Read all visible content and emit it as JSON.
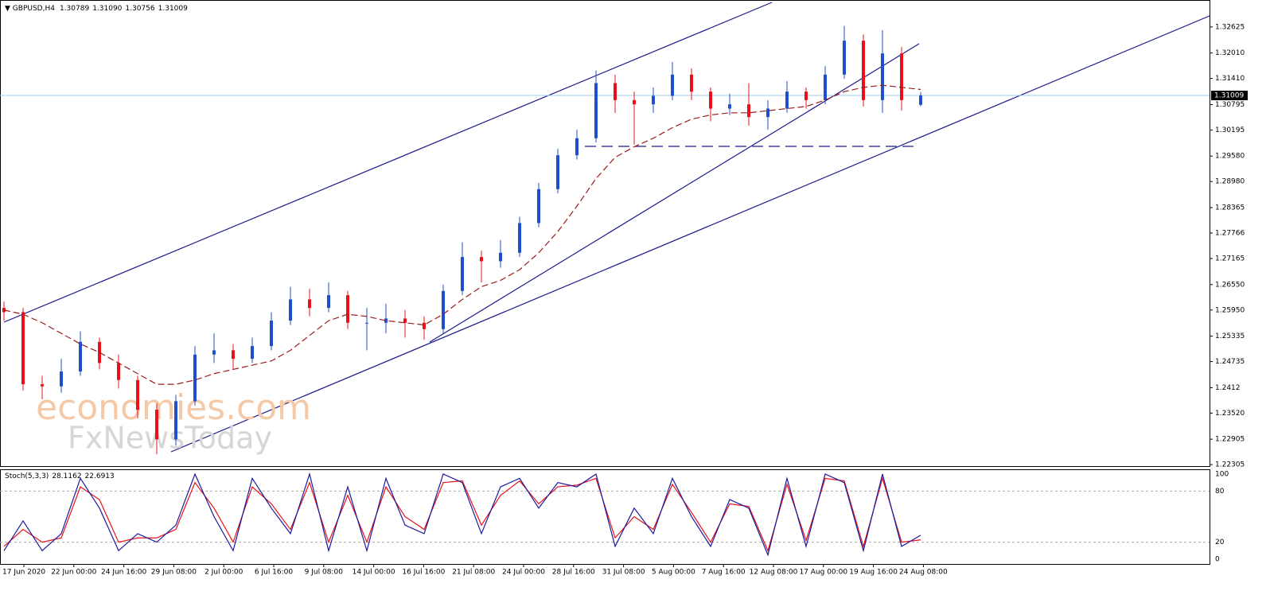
{
  "chart_data": {
    "type": "candlestick",
    "symbol": "GBPUSD,H4",
    "ohlc_header": [
      "1.30789",
      "1.31090",
      "1.30756",
      "1.31009"
    ],
    "current_price": 1.31009,
    "watermark": [
      "economies.com",
      "FxNewsToday"
    ],
    "up_color": "#1f4fd1",
    "down_color": "#e8111a",
    "ma_color": "#9b1c1c",
    "ylim": [
      1.2227,
      1.3326
    ],
    "yticks": [
      {
        "value": 1.22305,
        "label": "1.22305"
      },
      1.22905,
      {
        "value": 1.2352,
        "label": "1.23520"
      },
      1.2412,
      1.24735,
      1.25335,
      {
        "value": 1.2595,
        "label": "1.25950"
      },
      {
        "value": 1.2655,
        "label": "1.26550"
      },
      1.27165,
      1.27766,
      1.28365,
      {
        "value": 1.2898,
        "label": "1.28980"
      },
      {
        "value": 1.2958,
        "label": "1.29580"
      },
      {
        "value": 1.30195,
        "label": "1.30195"
      },
      1.30795,
      {
        "value": 1.3141,
        "label": "1.31410"
      },
      {
        "value": 1.3201,
        "label": "1.32010"
      },
      1.32625
    ],
    "time_labels": [
      "17 Jun 2020",
      "22 Jun 00:00",
      "24 Jun 16:00",
      "29 Jun 08:00",
      "2 Jul 00:00",
      "6 Jul 16:00",
      "9 Jul 08:00",
      "14 Jul 00:00",
      "16 Jul 16:00",
      "21 Jul 08:00",
      "24 Jul 00:00",
      "28 Jul 16:00",
      "31 Jul 08:00",
      "5 Aug 00:00",
      "7 Aug 16:00",
      "12 Aug 08:00",
      "17 Aug 00:00",
      "19 Aug 16:00",
      "24 Aug 08:00"
    ],
    "open": [
      1.26,
      1.259,
      1.242,
      1.2415,
      1.245,
      1.252,
      1.247,
      1.243,
      1.236,
      1.229,
      1.238,
      1.249,
      1.25,
      1.248,
      1.251,
      1.257,
      1.262,
      1.26,
      1.263,
      1.2565,
      1.2565,
      1.2575,
      1.2565,
      1.255,
      1.264,
      1.272,
      1.271,
      1.273,
      1.28,
      1.288,
      1.296,
      1.3,
      1.313,
      1.309,
      1.308,
      1.31,
      1.315,
      1.311,
      1.307,
      1.308,
      1.305,
      1.307,
      1.311,
      1.309,
      1.315,
      1.323,
      1.309,
      1.32,
      1.30789
    ],
    "high": [
      1.2615,
      1.26,
      1.244,
      1.248,
      1.2545,
      1.253,
      1.249,
      1.244,
      1.2375,
      1.2395,
      1.251,
      1.254,
      1.2515,
      1.253,
      1.259,
      1.265,
      1.2645,
      1.266,
      1.264,
      1.26,
      1.261,
      1.2595,
      1.258,
      1.2655,
      1.2755,
      1.2735,
      1.276,
      1.2815,
      1.2895,
      1.2975,
      1.302,
      1.316,
      1.315,
      1.311,
      1.312,
      1.318,
      1.3165,
      1.312,
      1.3105,
      1.313,
      1.309,
      1.3135,
      1.312,
      1.317,
      1.3265,
      1.3245,
      1.3255,
      1.3215,
      1.3109
    ],
    "low": [
      1.257,
      1.2405,
      1.2385,
      1.24,
      1.244,
      1.2455,
      1.241,
      1.234,
      1.2255,
      1.2275,
      1.237,
      1.247,
      1.2455,
      1.247,
      1.25,
      1.256,
      1.258,
      1.259,
      1.255,
      1.25,
      1.254,
      1.253,
      1.2525,
      1.254,
      1.263,
      1.266,
      1.2695,
      1.272,
      1.279,
      1.287,
      1.295,
      1.299,
      1.306,
      1.2985,
      1.306,
      1.309,
      1.309,
      1.304,
      1.3055,
      1.303,
      1.302,
      1.306,
      1.307,
      1.308,
      1.314,
      1.3075,
      1.306,
      1.3065,
      1.30756
    ],
    "close": [
      1.259,
      1.242,
      1.2415,
      1.245,
      1.252,
      1.247,
      1.243,
      1.236,
      1.229,
      1.238,
      1.249,
      1.25,
      1.248,
      1.251,
      1.257,
      1.262,
      1.26,
      1.263,
      1.2565,
      1.2565,
      1.2575,
      1.2565,
      1.255,
      1.264,
      1.272,
      1.271,
      1.273,
      1.28,
      1.288,
      1.296,
      1.3,
      1.313,
      1.309,
      1.308,
      1.31,
      1.315,
      1.311,
      1.307,
      1.308,
      1.305,
      1.307,
      1.311,
      1.309,
      1.315,
      1.323,
      1.309,
      1.32,
      1.309,
      1.31009
    ],
    "ma": [
      1.2595,
      1.2585,
      1.2565,
      1.254,
      1.2515,
      1.2495,
      1.247,
      1.2445,
      1.242,
      1.242,
      1.243,
      1.2445,
      1.2455,
      1.2465,
      1.2475,
      1.25,
      1.2535,
      1.257,
      1.2585,
      1.258,
      1.257,
      1.2565,
      1.256,
      1.2585,
      1.262,
      1.265,
      1.2665,
      1.269,
      1.273,
      1.278,
      1.284,
      1.2905,
      1.2955,
      1.298,
      1.3,
      1.3025,
      1.3045,
      1.3055,
      1.306,
      1.306,
      1.3065,
      1.307,
      1.3075,
      1.309,
      1.311,
      1.312,
      1.3125,
      1.312,
      1.3115
    ],
    "stoch": {
      "name": "Stoch(5,3,3)",
      "ylim": [
        0,
        100
      ],
      "yticks": [
        0,
        20,
        80,
        100
      ],
      "k_color": "#1a1aa0",
      "d_color": "#e8111a",
      "k": [
        10,
        45,
        10,
        30,
        95,
        60,
        10,
        30,
        20,
        40,
        100,
        50,
        10,
        95,
        60,
        30,
        100,
        10,
        85,
        10,
        95,
        40,
        30,
        100,
        90,
        30,
        85,
        95,
        60,
        90,
        85,
        100,
        15,
        60,
        30,
        95,
        50,
        15,
        70,
        60,
        5,
        95,
        15,
        100,
        90,
        10,
        100,
        15,
        28.1162
      ],
      "d": [
        15,
        35,
        20,
        25,
        85,
        70,
        20,
        25,
        25,
        35,
        90,
        60,
        20,
        85,
        65,
        35,
        90,
        20,
        75,
        20,
        85,
        50,
        35,
        90,
        92,
        40,
        75,
        92,
        65,
        85,
        87,
        95,
        25,
        50,
        35,
        88,
        55,
        20,
        65,
        62,
        10,
        88,
        22,
        95,
        92,
        15,
        95,
        20,
        22.6913
      ]
    }
  }
}
